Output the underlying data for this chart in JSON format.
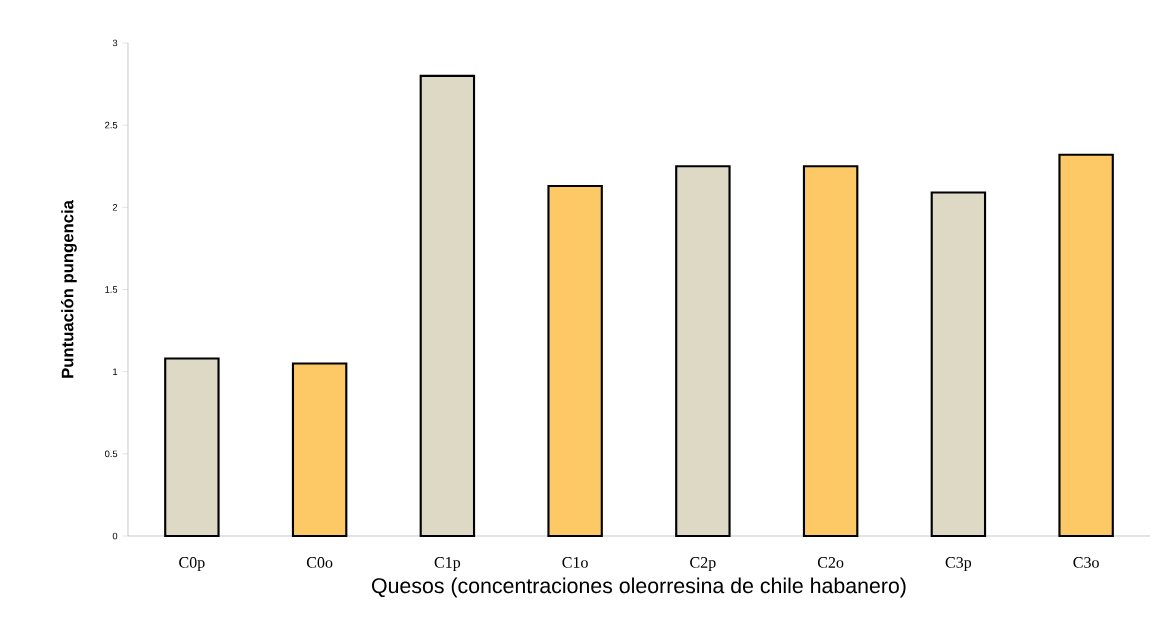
{
  "chart_data": {
    "type": "bar",
    "xlabel": "Quesos (concentraciones oleorresina de chile habanero)",
    "ylabel": "Puntuación pungencia",
    "categories": [
      "C0p",
      "C0o",
      "C1p",
      "C1o",
      "C2p",
      "C2o",
      "C3p",
      "C3o"
    ],
    "values": [
      1.08,
      1.05,
      2.8,
      2.13,
      2.25,
      2.25,
      2.09,
      2.32
    ],
    "colors": [
      "#ddd9c4",
      "#fdc966",
      "#ddd9c4",
      "#fdc966",
      "#ddd9c4",
      "#fdc966",
      "#ddd9c4",
      "#fdc966"
    ],
    "ylim": [
      0,
      3
    ],
    "yticks": [
      0,
      0.5,
      1,
      1.5,
      2,
      2.5,
      3
    ],
    "grid": false
  }
}
